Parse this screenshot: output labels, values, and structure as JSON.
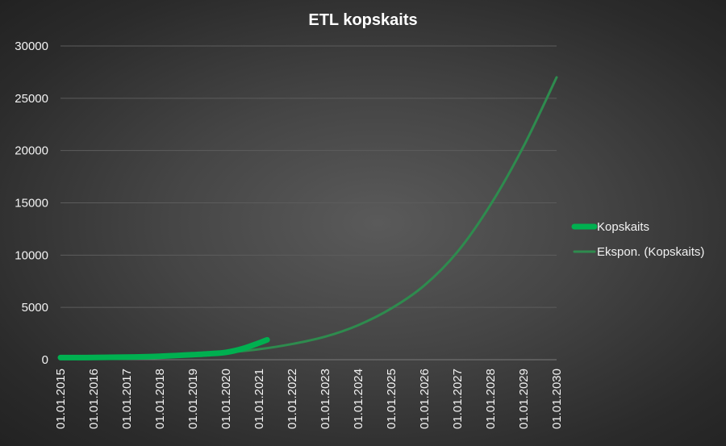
{
  "chart_data": {
    "type": "line",
    "title": "ETL kopskaits",
    "xlabel": "",
    "ylabel": "",
    "ylim": [
      0,
      30000
    ],
    "yticks": [
      0,
      5000,
      10000,
      15000,
      20000,
      25000,
      30000
    ],
    "x_axis_type": "date",
    "xlim": [
      "01.01.2015",
      "01.01.2030"
    ],
    "xticks": [
      "01.01.2015",
      "01.01.2016",
      "01.01.2017",
      "01.01.2018",
      "01.01.2019",
      "01.01.2020",
      "01.01.2021",
      "01.01.2022",
      "01.01.2023",
      "01.01.2024",
      "01.01.2025",
      "01.01.2026",
      "01.01.2027",
      "01.01.2028",
      "01.01.2029",
      "01.01.2030"
    ],
    "grid": true,
    "legend_position": "right",
    "series": [
      {
        "name": "Kopskaits",
        "color": "#00b050",
        "style": "solid-thick",
        "x": [
          "01.01.2015",
          "01.07.2015",
          "01.01.2016",
          "01.07.2016",
          "01.01.2017",
          "01.07.2017",
          "01.01.2018",
          "01.07.2018",
          "01.01.2019",
          "01.07.2019",
          "01.01.2020",
          "01.07.2020",
          "01.01.2021",
          "01.04.2021"
        ],
        "y": [
          200,
          200,
          210,
          230,
          250,
          280,
          330,
          400,
          480,
          570,
          700,
          1050,
          1600,
          1900
        ]
      },
      {
        "name": "Ekspon. (Kopskaits)",
        "color": "#2e8b4e",
        "style": "trendline",
        "x": [
          "01.01.2015",
          "01.01.2016",
          "01.01.2017",
          "01.01.2018",
          "01.01.2019",
          "01.01.2020",
          "01.01.2021",
          "01.01.2022",
          "01.01.2023",
          "01.01.2024",
          "01.01.2025",
          "01.01.2026",
          "01.01.2027",
          "01.01.2028",
          "01.01.2029",
          "01.01.2030"
        ],
        "y": [
          100,
          150,
          220,
          320,
          460,
          680,
          1000,
          1500,
          2200,
          3300,
          4900,
          7100,
          10300,
          14800,
          20400,
          27000
        ]
      }
    ]
  }
}
